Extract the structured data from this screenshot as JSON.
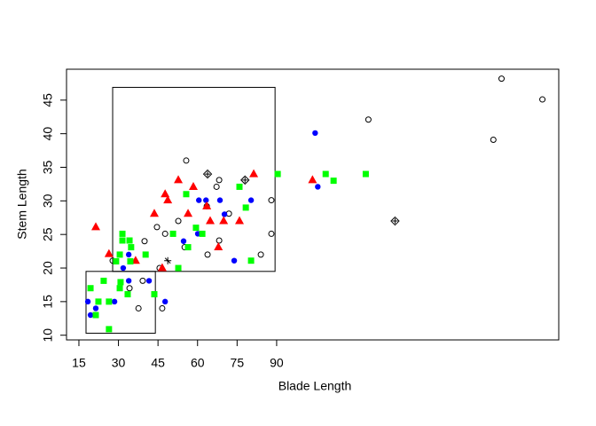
{
  "chart_data": {
    "type": "scatter",
    "x_label": "Blade Length",
    "y_label": "Stem Length",
    "xlim": [
      10.3,
      197
    ],
    "ylim": [
      9.3,
      49.6
    ],
    "xticks": [
      15,
      30,
      45,
      60,
      75,
      90
    ],
    "yticks": [
      10,
      15,
      20,
      25,
      30,
      35,
      40,
      45
    ],
    "rects": [
      {
        "x0": 27.8,
        "x1": 89.4,
        "y0": 19.5,
        "y1": 46.9
      },
      {
        "x0": 17.7,
        "x1": 44,
        "y0": 10.3,
        "y1": 19.5
      }
    ],
    "series": [
      {
        "shape": "circle-open",
        "color": "#000000",
        "x": [
          175.3,
          190.8,
          172.2,
          124.8,
          55.7,
          68.2,
          67.2,
          88,
          88,
          84,
          68.2,
          63.8,
          52.7,
          44.6,
          47.7,
          39.9,
          55.1,
          45.6,
          39.2,
          34.2,
          37.6,
          46.6,
          27.8,
          71.9,
          63.5
        ],
        "y": [
          48.2,
          45.1,
          39.1,
          42.1,
          36,
          33.1,
          32.1,
          30.1,
          25.1,
          22,
          24.1,
          22,
          27,
          26.1,
          25.1,
          24,
          23.1,
          20,
          18.1,
          17,
          14,
          14,
          21.1,
          28.1,
          29.2
        ]
      },
      {
        "shape": "diamond",
        "color": "#000000",
        "x": [
          134.9,
          63.8,
          78
        ],
        "y": [
          27,
          34,
          33.1
        ]
      },
      {
        "shape": "cross",
        "color": "#000000",
        "x": [
          48.7
        ],
        "y": [
          21.1
        ]
      },
      {
        "shape": "circle",
        "color": "#0000ff",
        "x": [
          104.6,
          105.6,
          60.5,
          63.2,
          68.5,
          80.3,
          70.2,
          60.1,
          54.7,
          73.9,
          31.8,
          33.9,
          33.9,
          41.6,
          28.5,
          18.4,
          19.4,
          21.4,
          47.7
        ],
        "y": [
          40.1,
          32.1,
          30.1,
          30.1,
          30.1,
          30.1,
          28,
          25.1,
          24,
          21.1,
          20,
          22,
          18.1,
          18.1,
          15,
          15,
          13,
          14,
          15
        ]
      },
      {
        "shape": "triangle",
        "color": "#ff0000",
        "x": [
          21.4,
          26.4,
          103.6,
          81.3,
          58.4,
          52.7,
          47.7,
          48.7,
          63.5,
          43.6,
          56.4,
          64.8,
          69.9,
          75.9,
          67.9,
          36.5,
          46.6
        ],
        "y": [
          26.1,
          22.1,
          33.1,
          34,
          32.1,
          33.1,
          31,
          30.1,
          29.2,
          28.1,
          28.1,
          27,
          27,
          27,
          23.1,
          21.1,
          20
        ]
      },
      {
        "shape": "square",
        "color": "#00ff00",
        "x": [
          90.4,
          108.6,
          123.8,
          111.6,
          75.9,
          55.7,
          78.3,
          59.4,
          61.8,
          50.7,
          56.4,
          80.3,
          52.7,
          40.3,
          34.2,
          34.8,
          31.5,
          31.5,
          30.5,
          29.1,
          34.5,
          30.8,
          30.5,
          33.5,
          43.6,
          24.4,
          19.4,
          22.4,
          26.4,
          21.4,
          26.4
        ],
        "y": [
          34,
          34,
          34,
          33,
          32.1,
          31,
          29,
          26,
          25.1,
          25.1,
          23.1,
          21.1,
          20,
          22,
          24.1,
          23.1,
          25.1,
          24.1,
          22,
          21,
          21,
          17.9,
          17,
          16.1,
          16.1,
          18.1,
          17,
          15,
          15,
          13,
          10.9
        ]
      }
    ]
  }
}
